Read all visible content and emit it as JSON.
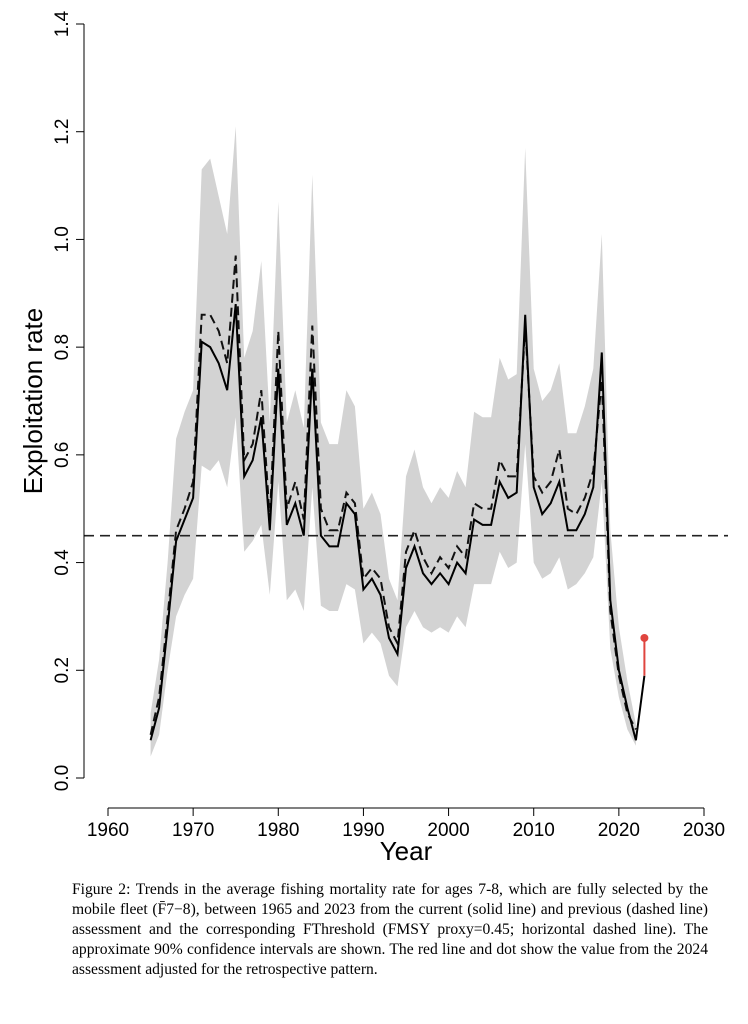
{
  "chart_data": {
    "type": "line",
    "xlabel": "Year",
    "ylabel": "Exploitation rate",
    "xlim": [
      1960,
      2030
    ],
    "ylim": [
      0.0,
      1.4
    ],
    "x_ticks": [
      "1960",
      "1970",
      "1980",
      "1990",
      "2000",
      "2010",
      "2020",
      "2030"
    ],
    "y_ticks": [
      "0.0",
      "0.2",
      "0.4",
      "0.6",
      "0.8",
      "1.0",
      "1.2",
      "1.4"
    ],
    "grid": false,
    "legend": "none",
    "threshold": 0.45,
    "series": [
      {
        "style": "solid",
        "x": [
          1965,
          1966,
          1967,
          1968,
          1969,
          1970,
          1971,
          1972,
          1973,
          1974,
          1975,
          1976,
          1977,
          1978,
          1979,
          1980,
          1981,
          1982,
          1983,
          1984,
          1985,
          1986,
          1987,
          1988,
          1989,
          1990,
          1991,
          1992,
          1993,
          1994,
          1995,
          1996,
          1997,
          1998,
          1999,
          2000,
          2001,
          2002,
          2003,
          2004,
          2005,
          2006,
          2007,
          2008,
          2009,
          2010,
          2011,
          2012,
          2013,
          2014,
          2015,
          2016,
          2017,
          2018,
          2019,
          2020,
          2021,
          2022,
          2023
        ],
        "values": [
          0.07,
          0.13,
          0.28,
          0.44,
          0.48,
          0.52,
          0.81,
          0.8,
          0.77,
          0.72,
          0.88,
          0.56,
          0.59,
          0.67,
          0.46,
          0.76,
          0.47,
          0.51,
          0.45,
          0.76,
          0.45,
          0.43,
          0.43,
          0.51,
          0.49,
          0.35,
          0.37,
          0.34,
          0.26,
          0.23,
          0.39,
          0.43,
          0.38,
          0.36,
          0.38,
          0.36,
          0.4,
          0.38,
          0.48,
          0.47,
          0.47,
          0.55,
          0.52,
          0.53,
          0.86,
          0.54,
          0.49,
          0.51,
          0.55,
          0.46,
          0.46,
          0.49,
          0.54,
          0.79,
          0.33,
          0.2,
          0.13,
          0.07,
          0.19
        ]
      },
      {
        "style": "dashed",
        "x": [
          1965,
          1966,
          1967,
          1968,
          1969,
          1970,
          1971,
          1972,
          1973,
          1974,
          1975,
          1976,
          1977,
          1978,
          1979,
          1980,
          1981,
          1982,
          1983,
          1984,
          1985,
          1986,
          1987,
          1988,
          1989,
          1990,
          1991,
          1992,
          1993,
          1994,
          1995,
          1996,
          1997,
          1998,
          1999,
          2000,
          2001,
          2002,
          2003,
          2004,
          2005,
          2006,
          2007,
          2008,
          2009,
          2010,
          2011,
          2012,
          2013,
          2014,
          2015,
          2016,
          2017,
          2018,
          2019,
          2020,
          2021,
          2022
        ],
        "values": [
          0.08,
          0.15,
          0.3,
          0.46,
          0.5,
          0.55,
          0.86,
          0.86,
          0.83,
          0.77,
          0.97,
          0.59,
          0.62,
          0.72,
          0.48,
          0.83,
          0.5,
          0.55,
          0.48,
          0.84,
          0.5,
          0.46,
          0.46,
          0.53,
          0.51,
          0.37,
          0.39,
          0.37,
          0.28,
          0.25,
          0.42,
          0.46,
          0.41,
          0.38,
          0.41,
          0.39,
          0.43,
          0.41,
          0.51,
          0.5,
          0.5,
          0.59,
          0.56,
          0.56,
          0.84,
          0.56,
          0.53,
          0.55,
          0.61,
          0.5,
          0.49,
          0.52,
          0.57,
          0.74,
          0.31,
          0.19,
          0.12,
          0.09
        ]
      }
    ],
    "confidence_band": {
      "x": [
        1965,
        1966,
        1967,
        1968,
        1969,
        1970,
        1971,
        1972,
        1973,
        1974,
        1975,
        1976,
        1977,
        1978,
        1979,
        1980,
        1981,
        1982,
        1983,
        1984,
        1985,
        1986,
        1987,
        1988,
        1989,
        1990,
        1991,
        1992,
        1993,
        1994,
        1995,
        1996,
        1997,
        1998,
        1999,
        2000,
        2001,
        2002,
        2003,
        2004,
        2005,
        2006,
        2007,
        2008,
        2009,
        2010,
        2011,
        2012,
        2013,
        2014,
        2015,
        2016,
        2017,
        2018,
        2019,
        2020,
        2021,
        2022
      ],
      "lower": [
        0.04,
        0.08,
        0.2,
        0.3,
        0.34,
        0.37,
        0.58,
        0.57,
        0.59,
        0.54,
        0.67,
        0.42,
        0.44,
        0.47,
        0.34,
        0.55,
        0.33,
        0.35,
        0.31,
        0.54,
        0.32,
        0.31,
        0.31,
        0.36,
        0.35,
        0.25,
        0.27,
        0.25,
        0.19,
        0.17,
        0.28,
        0.31,
        0.28,
        0.27,
        0.28,
        0.27,
        0.3,
        0.28,
        0.36,
        0.36,
        0.36,
        0.42,
        0.39,
        0.4,
        0.62,
        0.4,
        0.37,
        0.38,
        0.41,
        0.35,
        0.36,
        0.38,
        0.41,
        0.55,
        0.24,
        0.15,
        0.09,
        0.06
      ],
      "upper": [
        0.12,
        0.22,
        0.4,
        0.63,
        0.68,
        0.72,
        1.13,
        1.15,
        1.08,
        1.01,
        1.21,
        0.78,
        0.83,
        0.96,
        0.66,
        1.07,
        0.66,
        0.72,
        0.65,
        1.12,
        0.66,
        0.62,
        0.62,
        0.72,
        0.69,
        0.5,
        0.53,
        0.49,
        0.37,
        0.33,
        0.56,
        0.61,
        0.54,
        0.51,
        0.54,
        0.52,
        0.57,
        0.54,
        0.68,
        0.67,
        0.67,
        0.78,
        0.74,
        0.75,
        1.17,
        0.76,
        0.7,
        0.72,
        0.77,
        0.64,
        0.64,
        0.69,
        0.76,
        1.01,
        0.46,
        0.28,
        0.18,
        0.1
      ]
    },
    "adjusted_2024": {
      "x": [
        2023,
        2023
      ],
      "values": [
        0.19,
        0.26
      ],
      "color": "#e0453f"
    },
    "colors": {
      "line": "#000000",
      "band": "#d3d3d3",
      "adjusted": "#e0453f"
    }
  },
  "caption": "Figure 2: Trends in the average fishing mortality rate for ages 7-8, which are fully selected by the mobile fleet (F̄7−8), between 1965 and 2023 from the current (solid line) and previous (dashed line) assessment and the corresponding FThreshold (FMSY proxy=0.45; horizontal dashed line). The approximate 90% confidence intervals are shown. The red line and dot show the value from the 2024 assessment adjusted for the retrospective pattern."
}
